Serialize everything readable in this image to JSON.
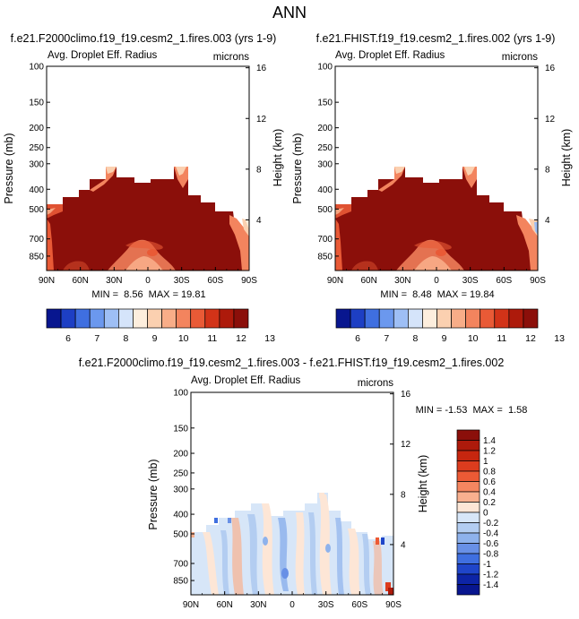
{
  "figure_title": "ANN",
  "colors": {
    "dark_red": "#8b0f0a",
    "light_blue": "#c9ddf5"
  },
  "chart_data": [
    {
      "id": "panel1",
      "type": "heatmap",
      "title": "f.e21.F2000climo.f19_f19.cesm2_1.fires.003 (yrs 1-9)",
      "subtitle": "Avg. Droplet Eff. Radius",
      "units": "microns",
      "ylabel": "Pressure (mb)",
      "ylabel_right": "Height (km)",
      "x_ticks": [
        "90N",
        "60N",
        "30N",
        "0",
        "30S",
        "60S",
        "90S"
      ],
      "y_ticks": [
        "100",
        "150",
        "200",
        "250",
        "300",
        "400",
        "500",
        "700",
        "850"
      ],
      "y_ticks_right": [
        "16",
        "12",
        "8",
        "4"
      ],
      "stats": "MIN =  8.56  MAX = 19.81"
    },
    {
      "id": "panel2",
      "type": "heatmap",
      "title": "f.e21.FHIST.f19_f19.cesm2_1.fires.002 (yrs 1-9)",
      "subtitle": "Avg. Droplet Eff. Radius",
      "units": "microns",
      "ylabel": "Pressure (mb)",
      "ylabel_right": "Height (km)",
      "x_ticks": [
        "90N",
        "60N",
        "30N",
        "0",
        "30S",
        "60S",
        "90S"
      ],
      "y_ticks": [
        "100",
        "150",
        "200",
        "250",
        "300",
        "400",
        "500",
        "700",
        "850"
      ],
      "y_ticks_right": [
        "16",
        "12",
        "8",
        "4"
      ],
      "stats": "MIN =  8.48  MAX = 19.84"
    },
    {
      "id": "diff",
      "type": "heatmap",
      "title": "f.e21.F2000climo.f19_f19.cesm2_1.fires.003 - f.e21.FHIST.f19_f19.cesm2_1.fires.002",
      "subtitle": "Avg. Droplet Eff. Radius",
      "units": "microns",
      "ylabel": "Pressure (mb)",
      "ylabel_right": "Height (km)",
      "x_ticks": [
        "90N",
        "60N",
        "30N",
        "0",
        "30S",
        "60S",
        "90S"
      ],
      "y_ticks": [
        "100",
        "150",
        "200",
        "250",
        "300",
        "400",
        "500",
        "700",
        "850"
      ],
      "y_ticks_right": [
        "16",
        "12",
        "8",
        "4"
      ],
      "stats": "MIN = -1.53  MAX =  1.58"
    }
  ],
  "colorbar_top": {
    "labels": [
      "6",
      "7",
      "8",
      "9",
      "10",
      "11",
      "12",
      "13"
    ],
    "colors": [
      "#08168f",
      "#1d3fc4",
      "#3f6fe0",
      "#6b98ee",
      "#9ebff5",
      "#d5e4fa",
      "#fdeedd",
      "#fbd0b0",
      "#f8ad88",
      "#f3845e",
      "#e95a36",
      "#d23318",
      "#ad1a0b",
      "#8b0f0a"
    ]
  },
  "colorbar_diff": {
    "labels": [
      "1.4",
      "1.2",
      "1",
      "0.8",
      "0.6",
      "0.4",
      "0.2",
      "0",
      "-0.2",
      "-0.4",
      "-0.6",
      "-0.8",
      "-1",
      "-1.2",
      "-1.4"
    ],
    "colors": [
      "#8b0f0a",
      "#ad1a0b",
      "#c7260f",
      "#dc3c1e",
      "#ec5a35",
      "#f58660",
      "#f9b08f",
      "#fde6d6",
      "#d7e6f8",
      "#b3cdf1",
      "#8eb2ec",
      "#6890e6",
      "#3f6fe0",
      "#1f45c9",
      "#0d24a6",
      "#08168f"
    ]
  }
}
